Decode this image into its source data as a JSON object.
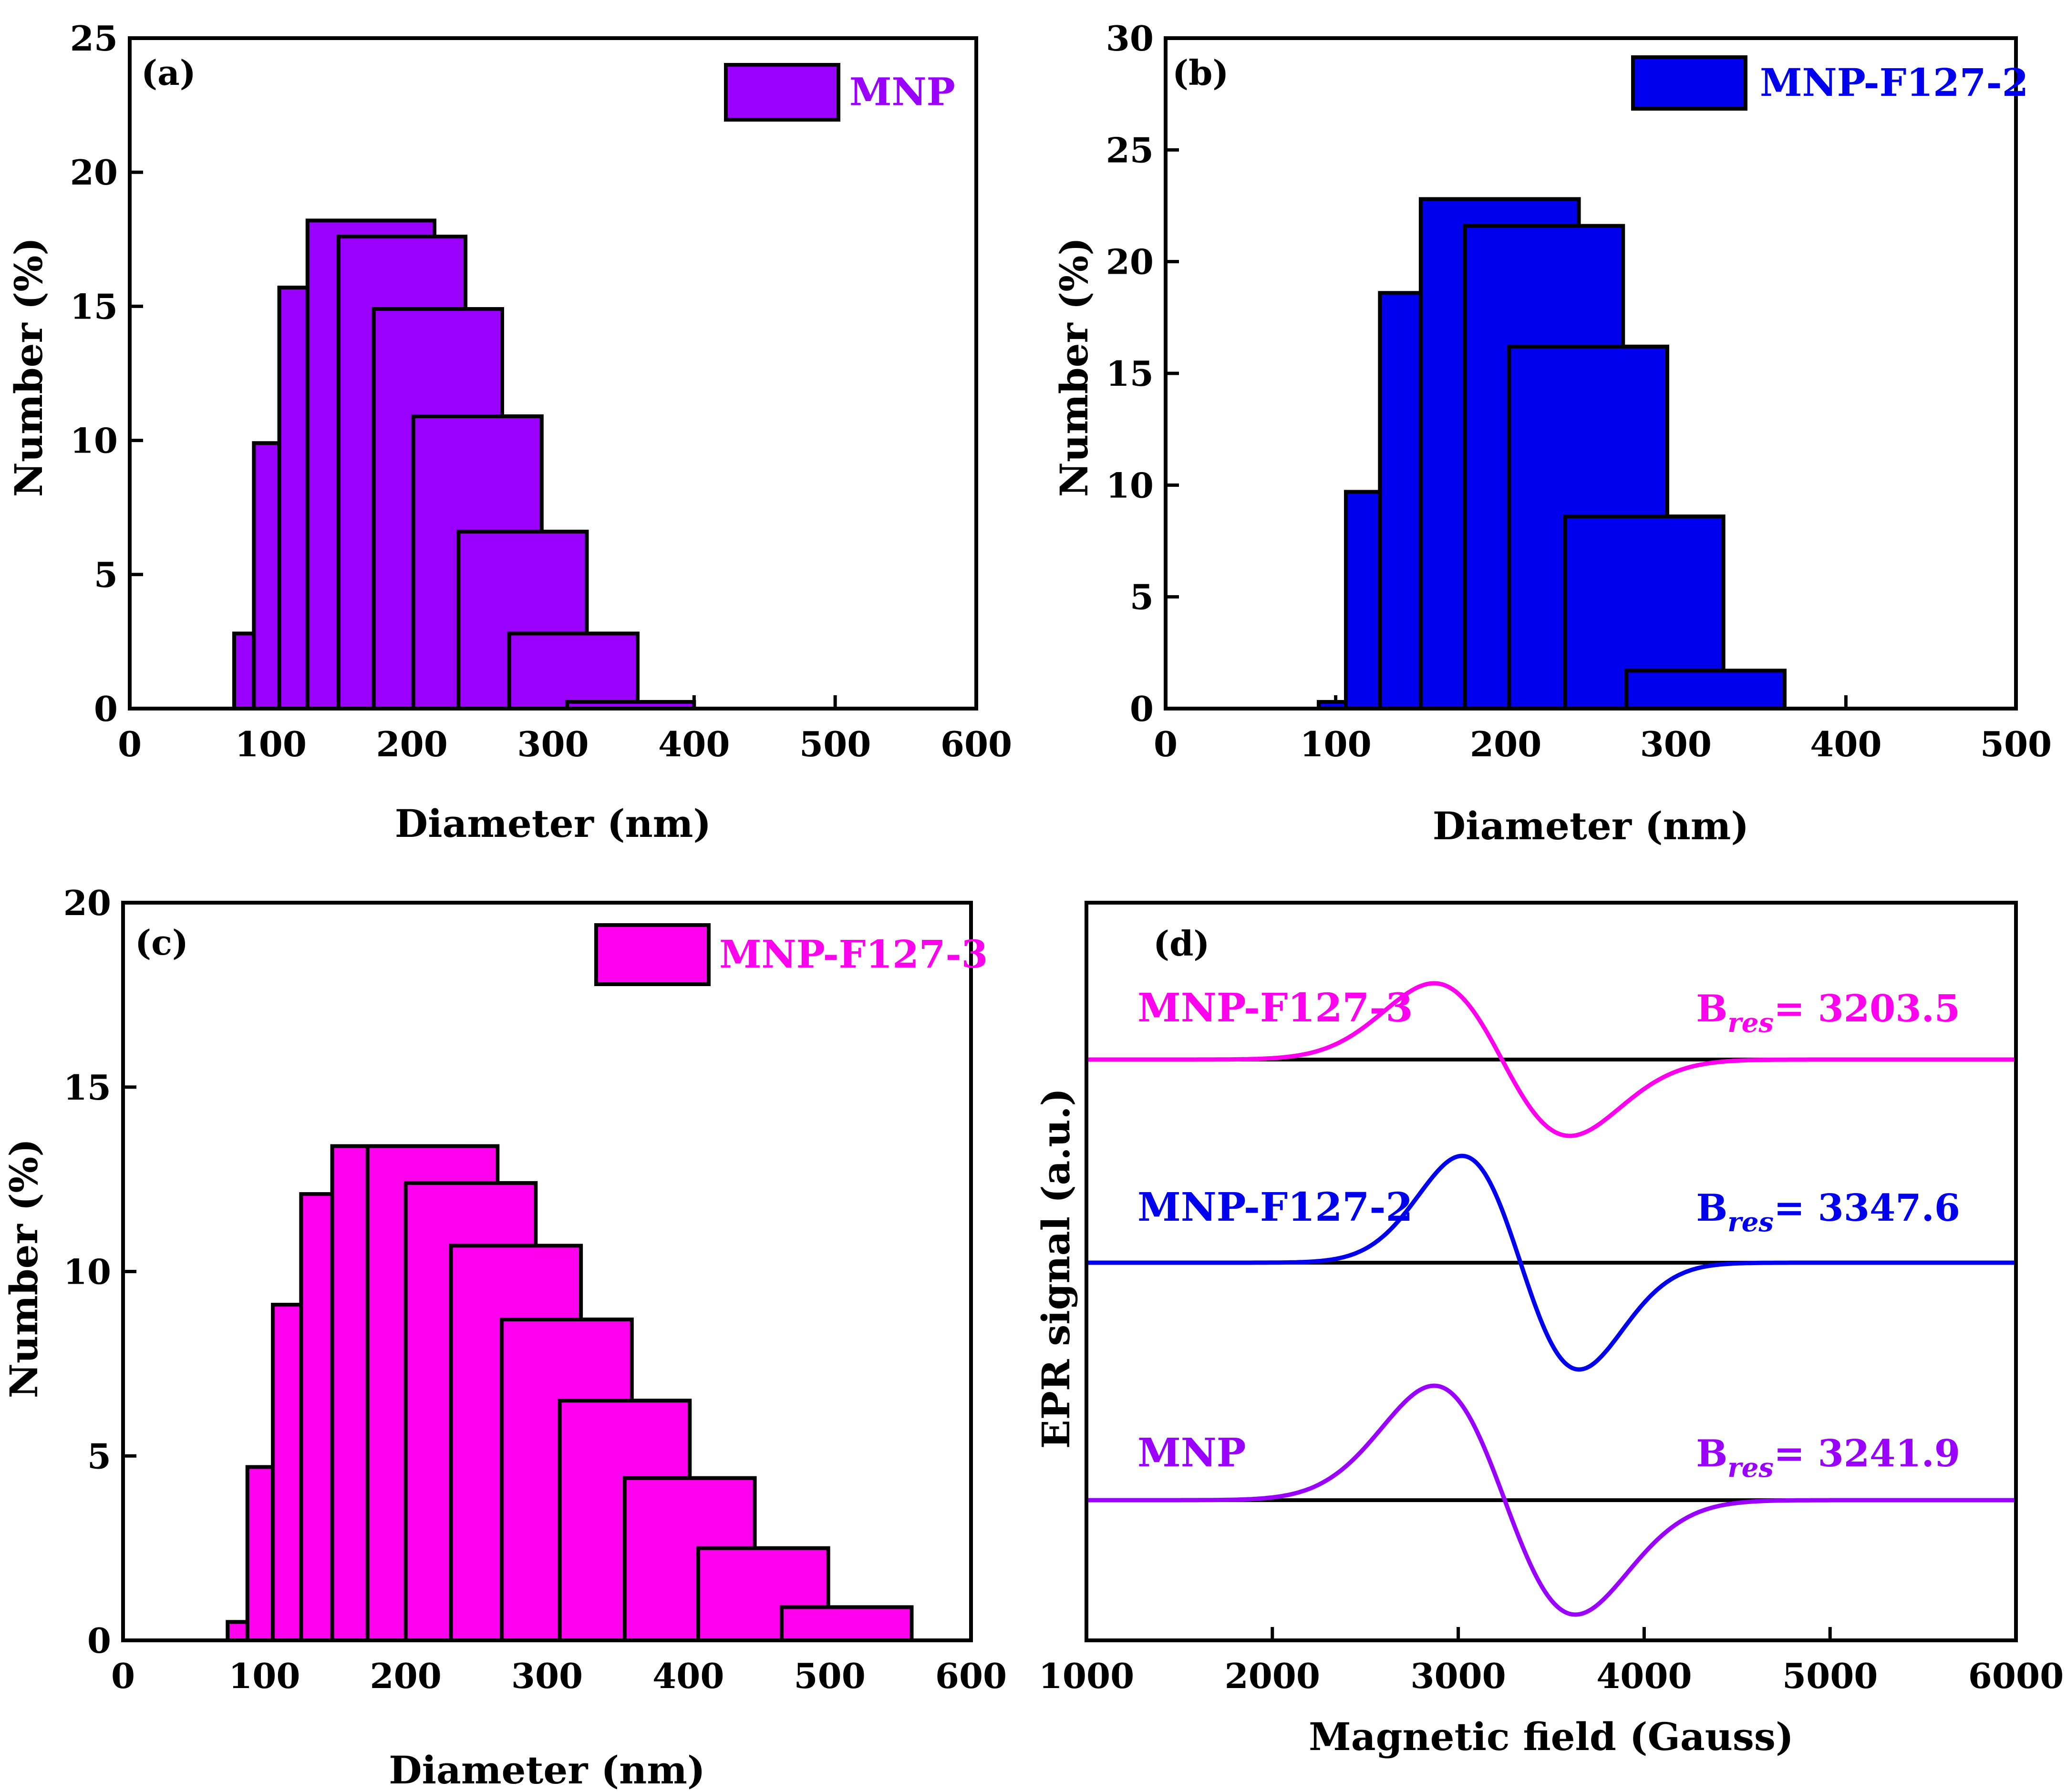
{
  "chart_data": [
    {
      "type": "bar",
      "panel": "(a)",
      "title": "",
      "xlabel": "Diameter (nm)",
      "ylabel": "Number (%)",
      "xlim": [
        0,
        600
      ],
      "ylim": [
        0,
        25
      ],
      "xticks": [
        "0",
        "100",
        "200",
        "300",
        "400",
        "500",
        "600"
      ],
      "yticks": [
        "0",
        "5",
        "10",
        "15",
        "20",
        "25"
      ],
      "legend": {
        "label": "MNP",
        "position": "top-right"
      },
      "color": "#9900ff",
      "bars": [
        {
          "x0": 74,
          "x1": 88,
          "value": 2.8
        },
        {
          "x0": 88,
          "x1": 106,
          "value": 9.9
        },
        {
          "x0": 106,
          "x1": 126,
          "value": 15.7
        },
        {
          "x0": 126,
          "x1": 216,
          "value": 18.2
        },
        {
          "x0": 148,
          "x1": 238,
          "value": 17.6
        },
        {
          "x0": 173,
          "x1": 264,
          "value": 14.9
        },
        {
          "x0": 201,
          "x1": 292,
          "value": 10.9
        },
        {
          "x0": 233,
          "x1": 324,
          "value": 6.6
        },
        {
          "x0": 269,
          "x1": 360,
          "value": 2.8
        },
        {
          "x0": 310,
          "x1": 400,
          "value": 0.25
        }
      ]
    },
    {
      "type": "bar",
      "panel": "(b)",
      "title": "",
      "xlabel": "Diameter (nm)",
      "ylabel": "Number (%)",
      "xlim": [
        0,
        500
      ],
      "ylim": [
        0,
        30
      ],
      "xticks": [
        "0",
        "100",
        "200",
        "300",
        "400",
        "500"
      ],
      "yticks": [
        "0",
        "5",
        "10",
        "15",
        "20",
        "25",
        "30"
      ],
      "legend": {
        "label": "MNP-F127-2",
        "position": "top-right"
      },
      "color": "#0000ee",
      "bars": [
        {
          "x0": 90,
          "x1": 106,
          "value": 0.3
        },
        {
          "x0": 106,
          "x1": 126,
          "value": 9.7
        },
        {
          "x0": 126,
          "x1": 150,
          "value": 18.6
        },
        {
          "x0": 150,
          "x1": 243,
          "value": 22.8
        },
        {
          "x0": 176,
          "x1": 269,
          "value": 21.6
        },
        {
          "x0": 202,
          "x1": 295,
          "value": 16.2
        },
        {
          "x0": 235,
          "x1": 328,
          "value": 8.6
        },
        {
          "x0": 271,
          "x1": 364,
          "value": 1.7
        }
      ]
    },
    {
      "type": "bar",
      "panel": "(c)",
      "title": "",
      "xlabel": "Diameter (nm)",
      "ylabel": "Number (%)",
      "xlim": [
        0,
        600
      ],
      "ylim": [
        0,
        20
      ],
      "xticks": [
        "0",
        "100",
        "200",
        "300",
        "400",
        "500",
        "600"
      ],
      "yticks": [
        "0",
        "5",
        "10",
        "15",
        "20"
      ],
      "legend": {
        "label": "MNP-F127-3",
        "position": "top-right"
      },
      "color": "#ff00ee",
      "bars": [
        {
          "x0": 74,
          "x1": 88,
          "value": 0.5
        },
        {
          "x0": 88,
          "x1": 106,
          "value": 4.7
        },
        {
          "x0": 106,
          "x1": 126,
          "value": 9.1
        },
        {
          "x0": 126,
          "x1": 148,
          "value": 12.1
        },
        {
          "x0": 148,
          "x1": 240,
          "value": 13.4
        },
        {
          "x0": 173,
          "x1": 265,
          "value": 13.4
        },
        {
          "x0": 200,
          "x1": 292,
          "value": 12.4
        },
        {
          "x0": 232,
          "x1": 324,
          "value": 10.7
        },
        {
          "x0": 268,
          "x1": 360,
          "value": 8.7
        },
        {
          "x0": 309,
          "x1": 401,
          "value": 6.5
        },
        {
          "x0": 355,
          "x1": 447,
          "value": 4.4
        },
        {
          "x0": 407,
          "x1": 499,
          "value": 2.5
        },
        {
          "x0": 466,
          "x1": 558,
          "value": 0.9
        }
      ]
    },
    {
      "type": "line",
      "panel": "(d)",
      "title": "",
      "xlabel": "Magnetic field (Gauss)",
      "ylabel": "EPR signal (a.u.)",
      "xlim": [
        1000,
        6000
      ],
      "xticks": [
        "1000",
        "2000",
        "3000",
        "4000",
        "5000",
        "6000"
      ],
      "series": [
        {
          "name": "MNP-F127-3",
          "color": "#ff00ee",
          "peak_x": 2870,
          "trough_x": 3600,
          "center": 3203.5,
          "amplitude": 1.0,
          "baseline_level": 3,
          "annotation_sym": "B",
          "annotation_sub": "res",
          "annotation_value": "= 3203.5"
        },
        {
          "name": "MNP-F127-2",
          "color": "#0000ee",
          "peak_x": 3020,
          "trough_x": 3650,
          "center": 3347.6,
          "amplitude": 1.4,
          "baseline_level": 2,
          "annotation_sym": "B",
          "annotation_sub": "res",
          "annotation_value": "= 3347.6"
        },
        {
          "name": "MNP",
          "color": "#9900ff",
          "peak_x": 2870,
          "trough_x": 3630,
          "center": 3241.9,
          "amplitude": 1.5,
          "baseline_level": 1,
          "annotation_sym": "B",
          "annotation_sub": "res",
          "annotation_value": "= 3241.9"
        }
      ]
    }
  ]
}
